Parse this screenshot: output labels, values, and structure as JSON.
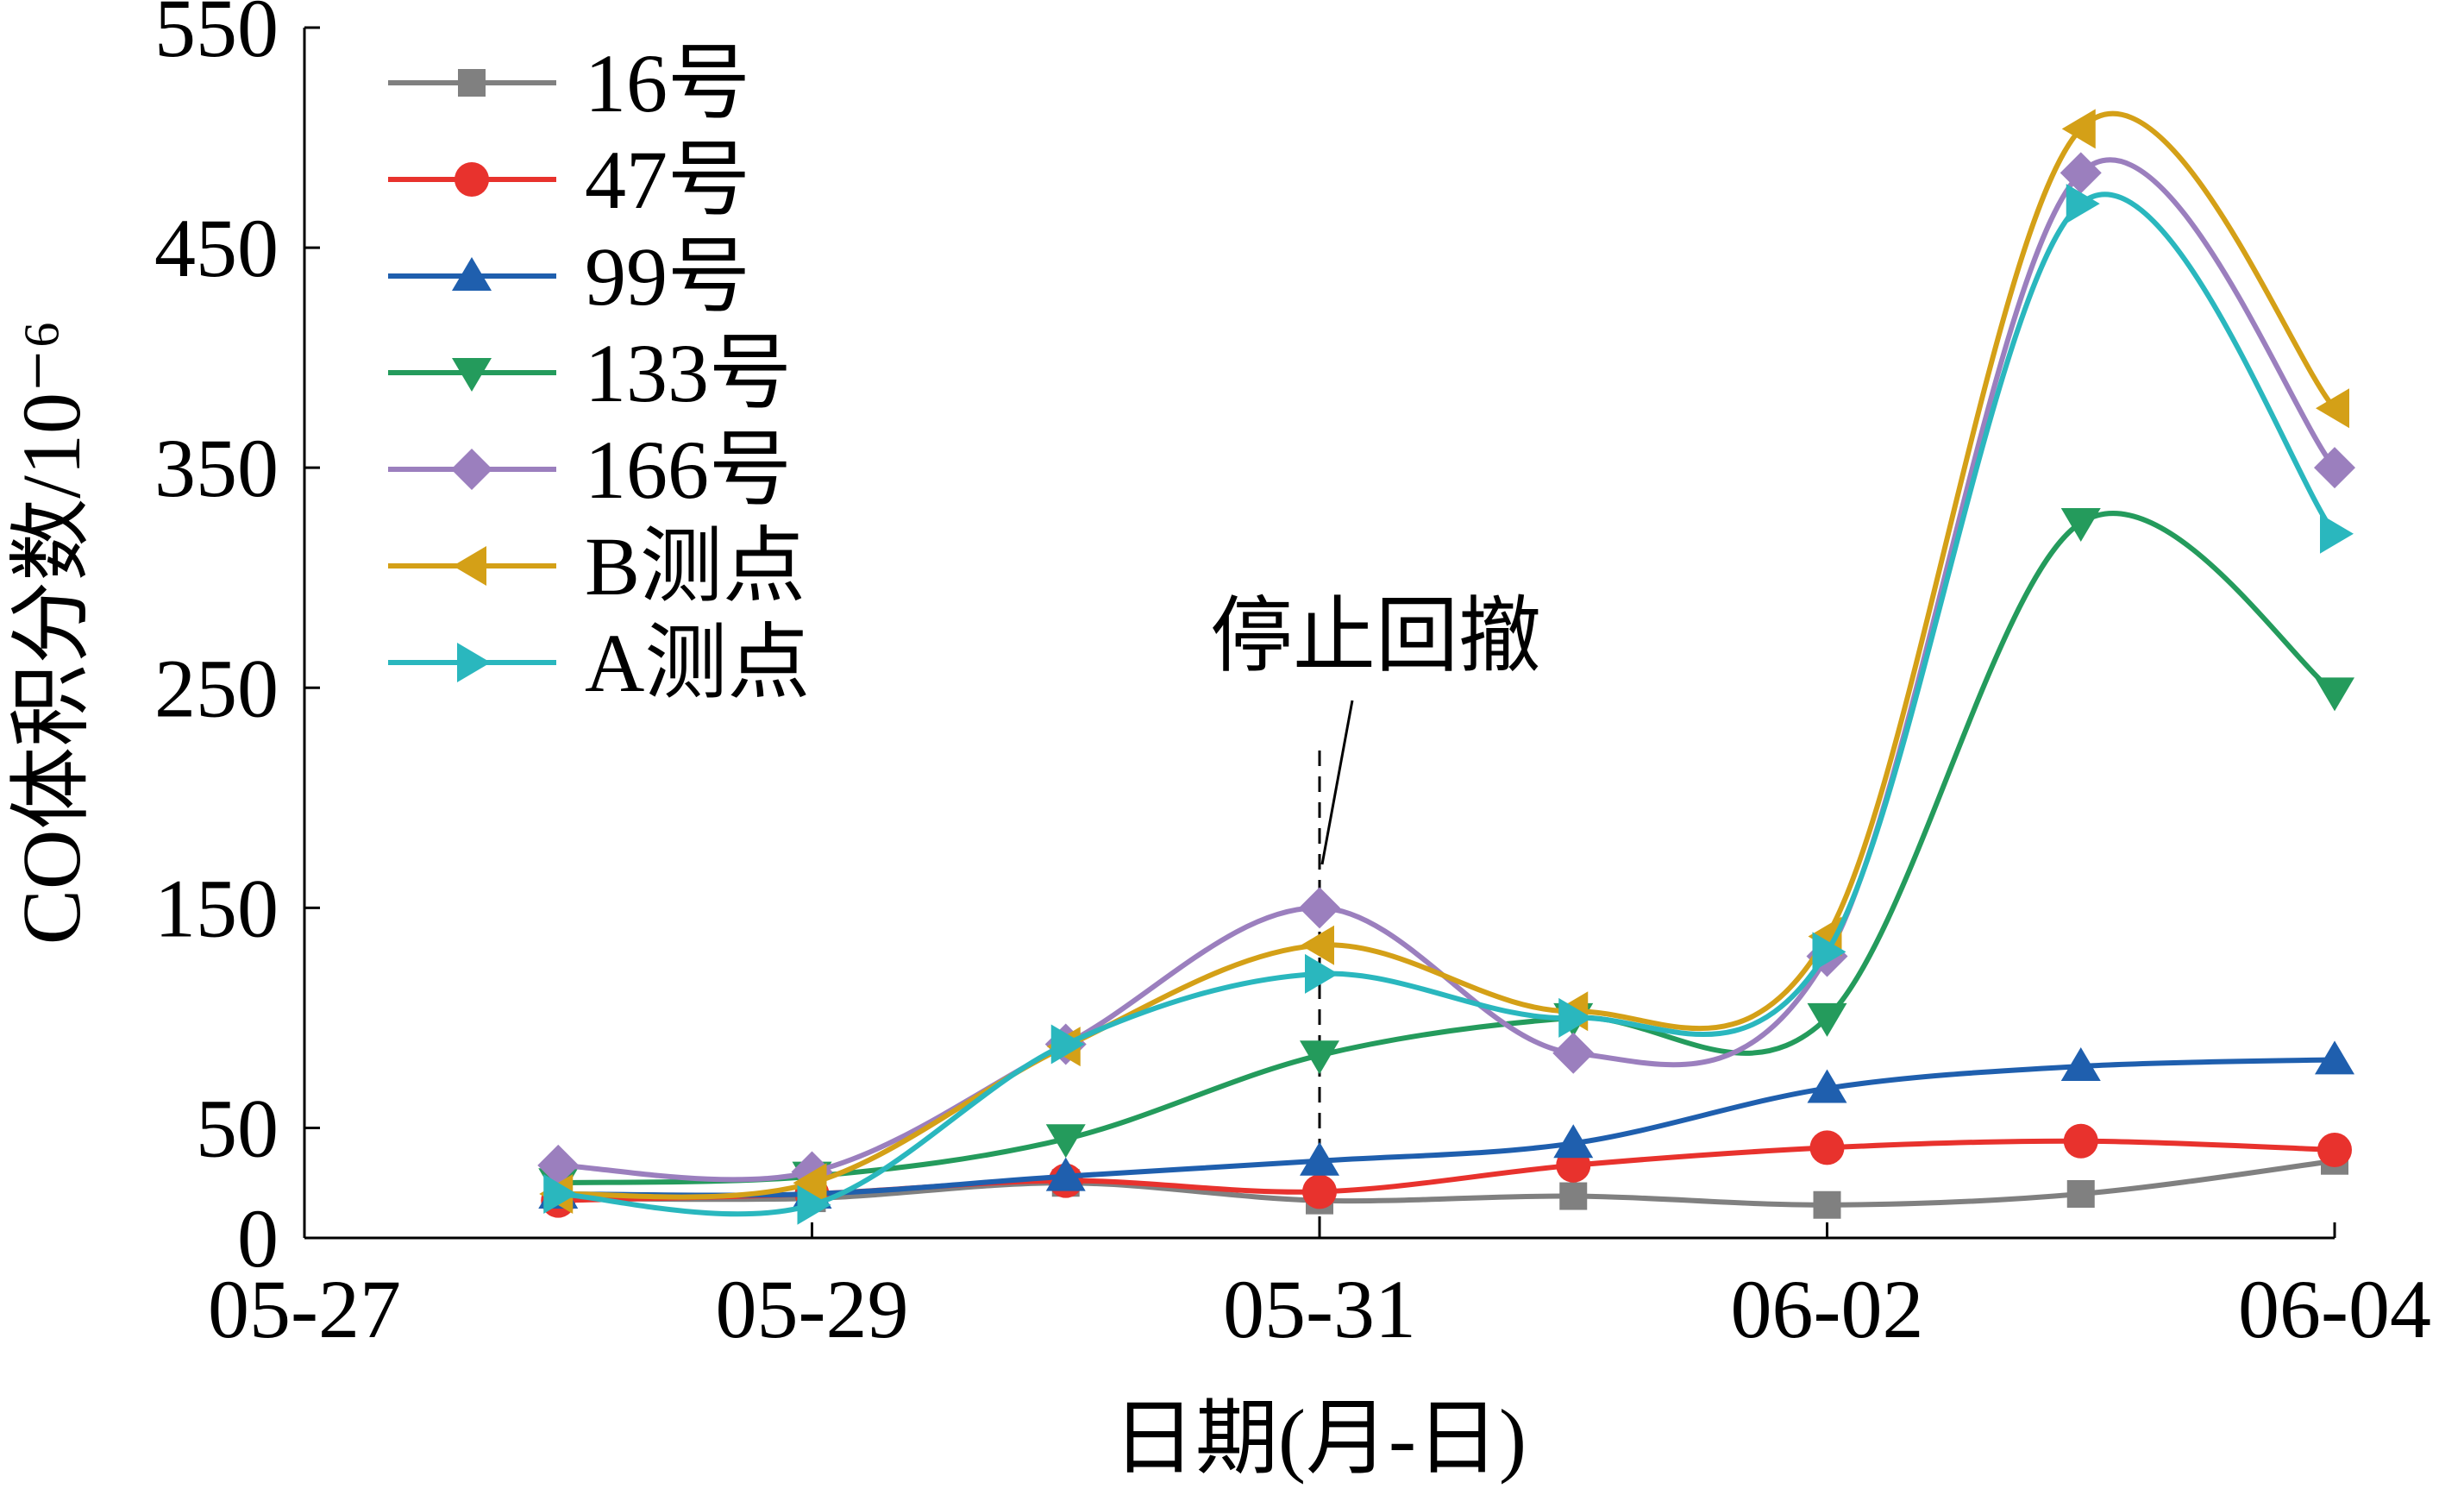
{
  "chart_data": {
    "type": "line",
    "xlabel": "日期(月-日)",
    "ylabel": "CO体积分数/10⁻⁶",
    "xlim": [
      "05-27",
      "06-04"
    ],
    "ylim": [
      0,
      550
    ],
    "x_ticks": [
      "05-27",
      "05-29",
      "05-31",
      "06-02",
      "06-04"
    ],
    "y_ticks": [
      0,
      50,
      150,
      250,
      350,
      450,
      550
    ],
    "x": [
      "05-28",
      "05-29",
      "05-30",
      "05-31",
      "06-01",
      "06-02",
      "06-03",
      "06-04"
    ],
    "grid": false,
    "legend_position": "top-left",
    "series": [
      {
        "name": "16号",
        "color": "#808080",
        "marker": "square",
        "values": [
          18,
          18,
          25,
          17,
          19,
          15,
          20,
          35
        ]
      },
      {
        "name": "47号",
        "color": "#e8322d",
        "marker": "circle",
        "values": [
          17,
          20,
          26,
          21,
          33,
          41,
          44,
          40
        ]
      },
      {
        "name": "99号",
        "color": "#1f5fae",
        "marker": "triangle-up",
        "values": [
          20,
          20,
          28,
          35,
          43,
          68,
          78,
          81
        ]
      },
      {
        "name": "133号",
        "color": "#249b5c",
        "marker": "triangle-down",
        "values": [
          25,
          28,
          45,
          83,
          100,
          100,
          325,
          248
        ]
      },
      {
        "name": "166号",
        "color": "#9b7fbe",
        "marker": "diamond",
        "values": [
          33,
          30,
          88,
          150,
          84,
          128,
          484,
          350
        ]
      },
      {
        "name": "B测点",
        "color": "#d4a017",
        "marker": "triangle-left",
        "values": [
          20,
          25,
          87,
          133,
          103,
          137,
          504,
          377
        ]
      },
      {
        "name": "A测点",
        "color": "#2ab7be",
        "marker": "triangle-right",
        "values": [
          20,
          15,
          88,
          120,
          100,
          130,
          470,
          320
        ]
      }
    ],
    "annotations": [
      {
        "text": "停止回撤",
        "x": "05-31"
      }
    ]
  }
}
